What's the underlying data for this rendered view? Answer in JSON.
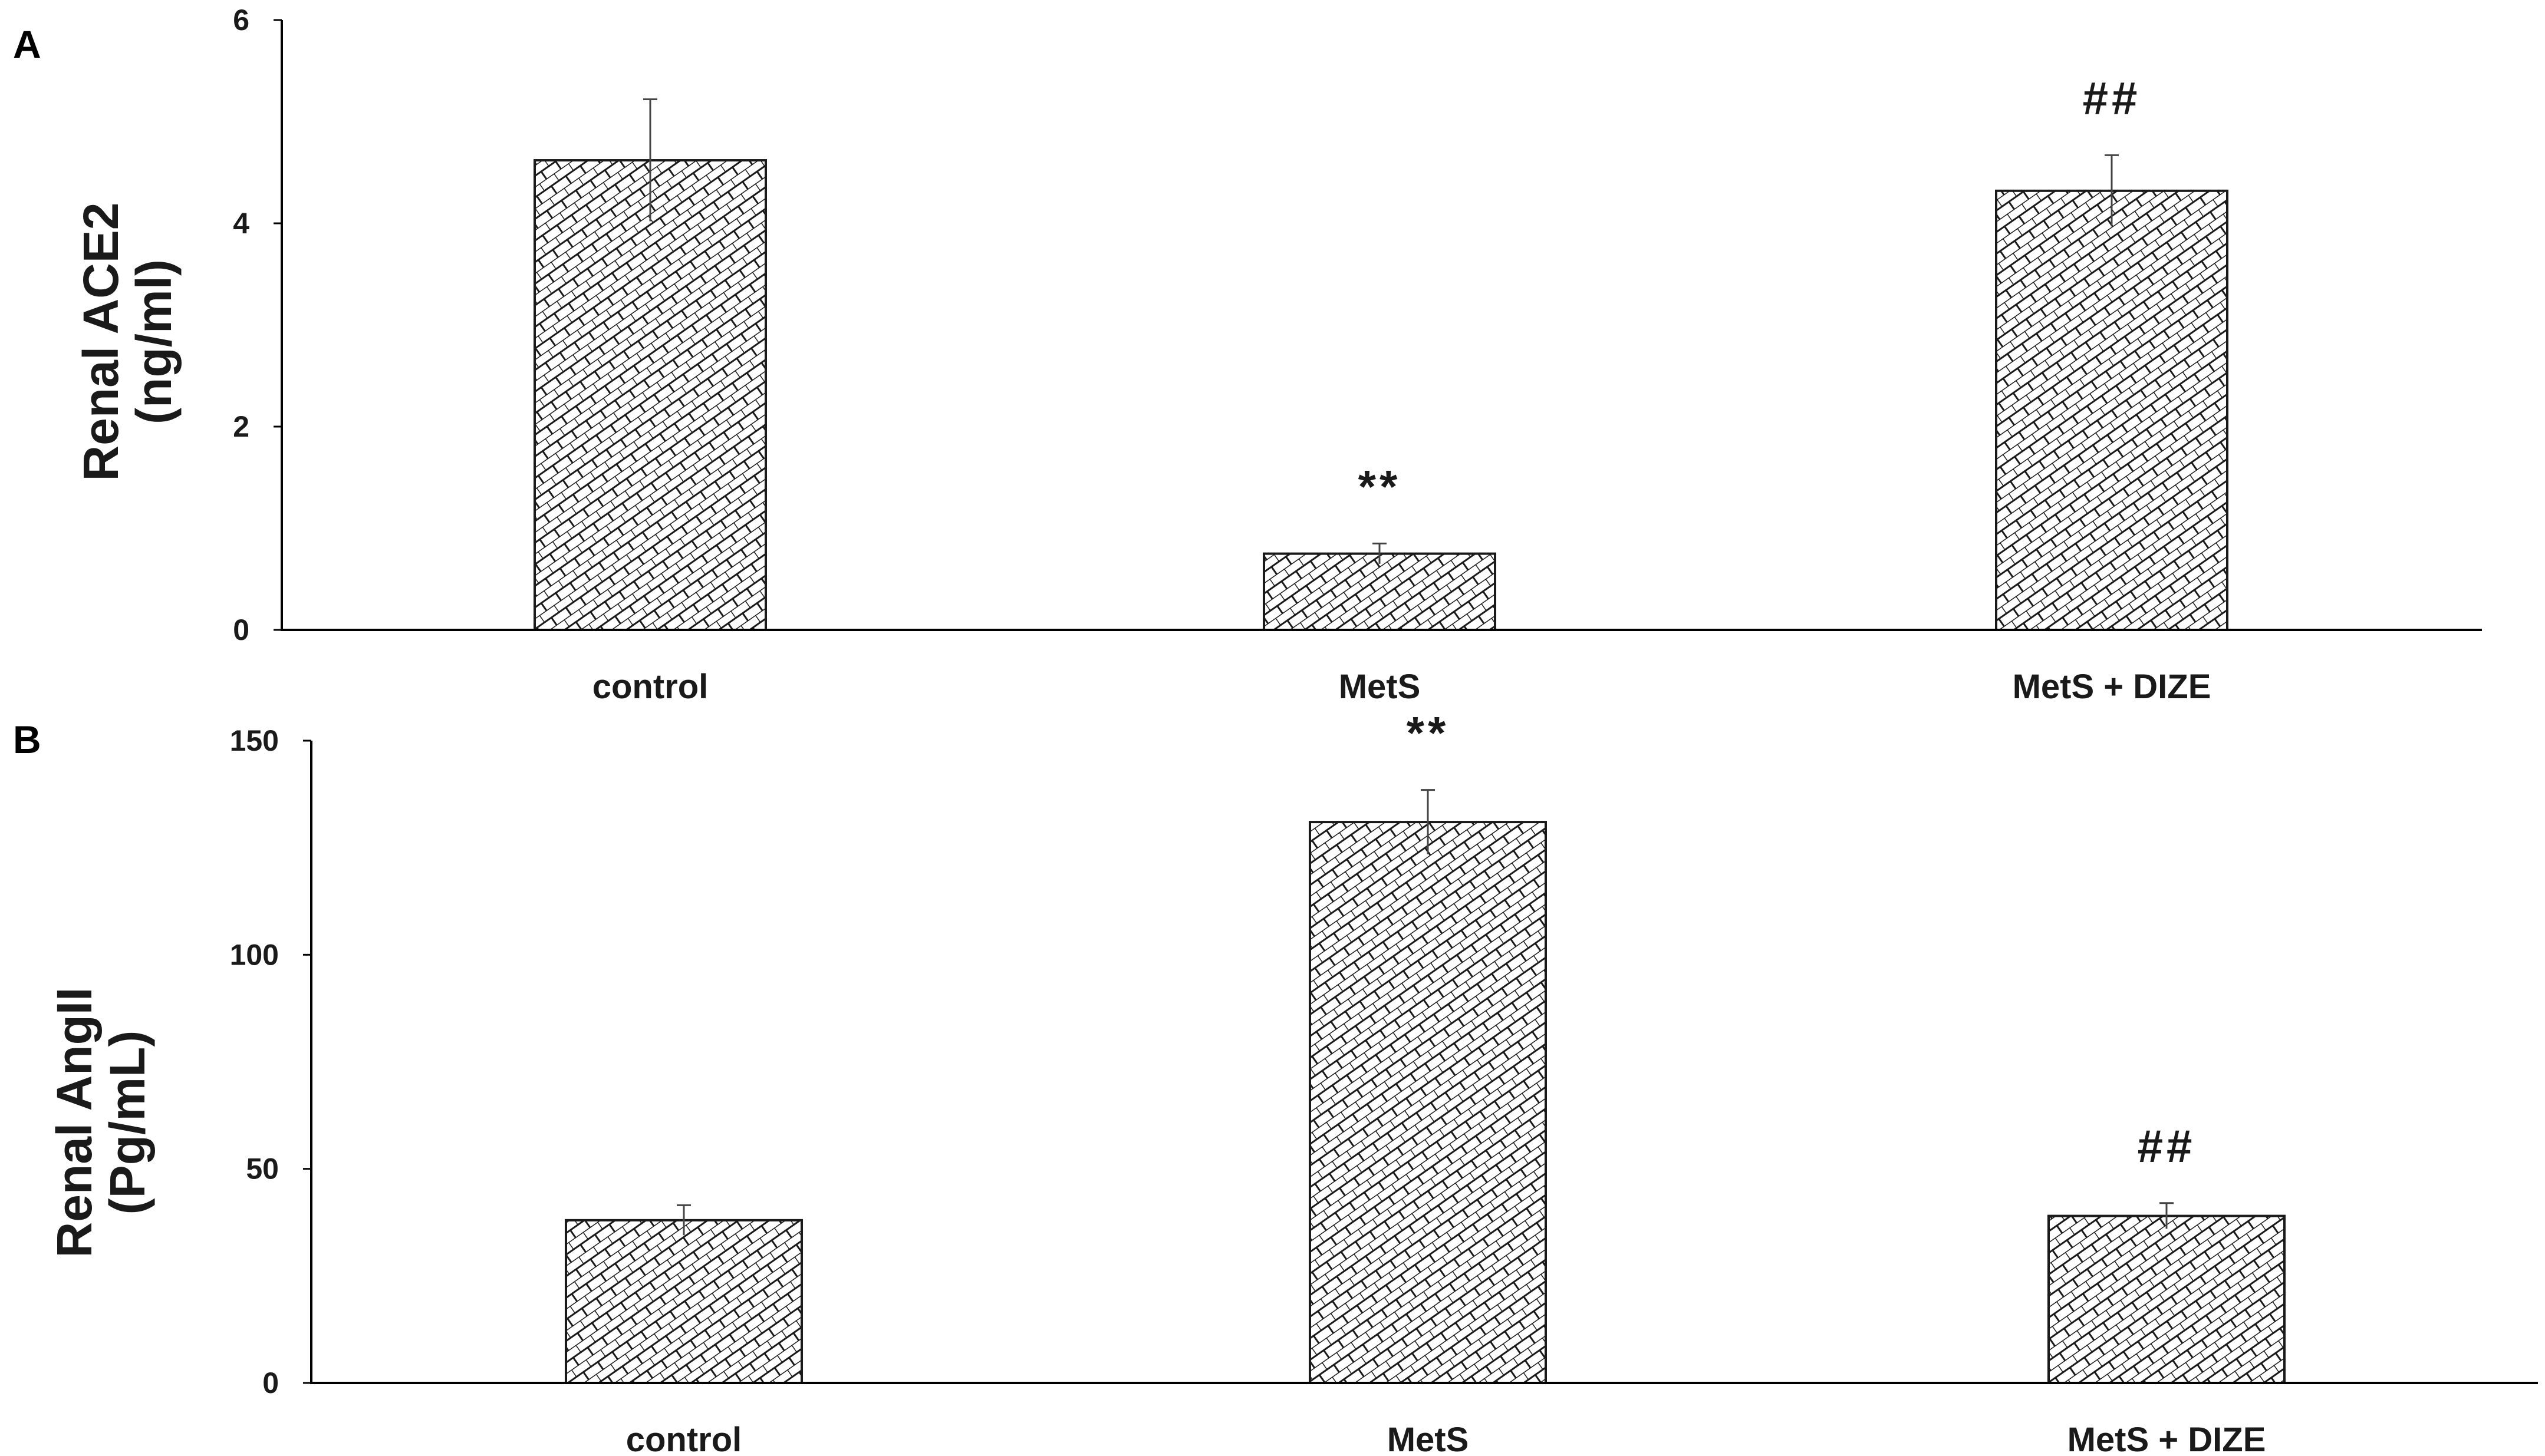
{
  "colors": {
    "axis": "#000000",
    "bar_outline": "#1a1a1a",
    "hatch": "#1a1a1a",
    "bar_fill": "#ffffff",
    "errorbar": "#444444"
  },
  "chart_data": [
    {
      "panel": "A",
      "type": "bar",
      "categories": [
        "control",
        "MetS",
        "MetS + DIZE"
      ],
      "values": [
        4.62,
        0.75,
        4.32
      ],
      "errors": [
        0.6,
        0.1,
        0.35
      ],
      "annotations": [
        "",
        "**",
        "##"
      ],
      "ylabel_line1": "Renal ACE2",
      "ylabel_line2": "(ng/ml)",
      "yticks": [
        "0",
        "2",
        "4",
        "6"
      ],
      "ylim": [
        0,
        6
      ],
      "grid": false,
      "legend": "none",
      "bar_pattern": "brick-crosshatch"
    },
    {
      "panel": "B",
      "type": "bar",
      "categories": [
        "control",
        "MetS",
        "MetS + DIZE"
      ],
      "values": [
        38,
        131,
        39
      ],
      "errors": [
        3.5,
        7.5,
        3
      ],
      "annotations": [
        "",
        "**",
        "##"
      ],
      "ylabel_line1": "Renal AngII",
      "ylabel_line2": "(Pg/mL)",
      "yticks": [
        "0",
        "50",
        "100",
        "150"
      ],
      "ylim": [
        0,
        150
      ],
      "grid": false,
      "legend": "none",
      "bar_pattern": "brick-crosshatch"
    }
  ]
}
